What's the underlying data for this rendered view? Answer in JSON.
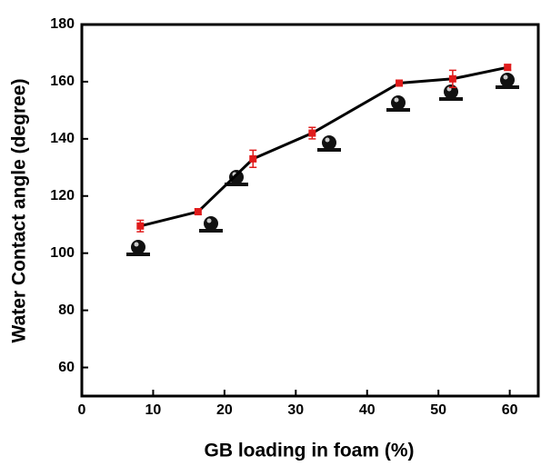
{
  "chart_data": {
    "type": "line",
    "x_label": "GB loading in foam (%)",
    "y_label": "Water Contact angle (degree)",
    "x": [
      8.2,
      16.3,
      24,
      32.3,
      44.5,
      52,
      59.7
    ],
    "values": [
      109.5,
      114.5,
      133,
      142,
      159.5,
      161,
      165
    ],
    "errors": [
      2,
      1,
      3,
      2,
      1,
      3,
      1
    ],
    "line_color": "#000000",
    "marker_color": "#e01b1b",
    "xlim": [
      0,
      64
    ],
    "xticks": [
      0,
      10,
      20,
      30,
      40,
      50,
      60
    ],
    "ylim": [
      50,
      180
    ],
    "yticks": [
      60,
      80,
      100,
      120,
      140,
      160,
      180
    ],
    "grid": false
  }
}
